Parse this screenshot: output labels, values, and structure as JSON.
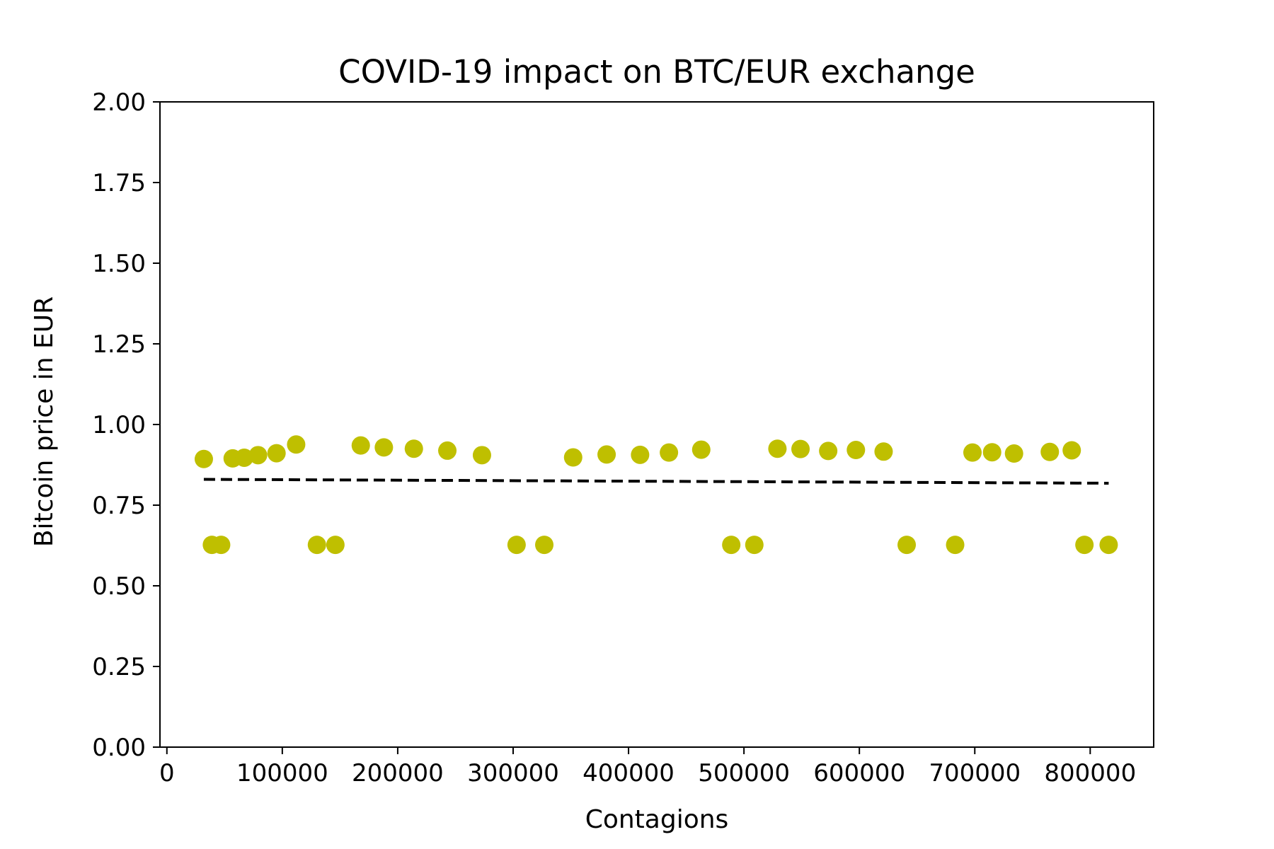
{
  "chart_data": {
    "type": "scatter",
    "title": "COVID-19 impact on BTC/EUR exchange",
    "xlabel": "Contagions",
    "ylabel": "Bitcoin price in EUR",
    "xlim": [
      -6000,
      855000
    ],
    "ylim": [
      0,
      2
    ],
    "xticks": [
      0,
      100000,
      200000,
      300000,
      400000,
      500000,
      600000,
      700000,
      800000
    ],
    "yticks": [
      "0.00",
      "0.25",
      "0.50",
      "0.75",
      "1.00",
      "1.25",
      "1.50",
      "1.75",
      "2.00"
    ],
    "grid": false,
    "legend": "none",
    "point_color": "#bfbf00",
    "trend_color": "#000000",
    "series": [
      {
        "points": [
          [
            32000,
            0.893
          ],
          [
            39000,
            0.627
          ],
          [
            47000,
            0.627
          ],
          [
            57000,
            0.895
          ],
          [
            67000,
            0.897
          ],
          [
            79000,
            0.905
          ],
          [
            95000,
            0.911
          ],
          [
            112000,
            0.938
          ],
          [
            130000,
            0.627
          ],
          [
            146000,
            0.627
          ],
          [
            168000,
            0.935
          ],
          [
            188000,
            0.929
          ],
          [
            214000,
            0.925
          ],
          [
            243000,
            0.919
          ],
          [
            273000,
            0.905
          ],
          [
            303000,
            0.627
          ],
          [
            327000,
            0.627
          ],
          [
            352000,
            0.898
          ],
          [
            381000,
            0.907
          ],
          [
            410000,
            0.906
          ],
          [
            435000,
            0.913
          ],
          [
            463000,
            0.922
          ],
          [
            489000,
            0.627
          ],
          [
            509000,
            0.627
          ],
          [
            529000,
            0.925
          ],
          [
            549000,
            0.924
          ],
          [
            573000,
            0.918
          ],
          [
            597000,
            0.921
          ],
          [
            621000,
            0.916
          ],
          [
            641000,
            0.627
          ],
          [
            683000,
            0.627
          ],
          [
            698000,
            0.913
          ],
          [
            715000,
            0.914
          ],
          [
            734000,
            0.91
          ],
          [
            765000,
            0.915
          ],
          [
            784000,
            0.92
          ],
          [
            795000,
            0.627
          ],
          [
            816000,
            0.627
          ]
        ]
      }
    ],
    "trend_line": {
      "style": "dashed",
      "x": [
        32000,
        816000
      ],
      "y": [
        0.83,
        0.818
      ]
    }
  }
}
